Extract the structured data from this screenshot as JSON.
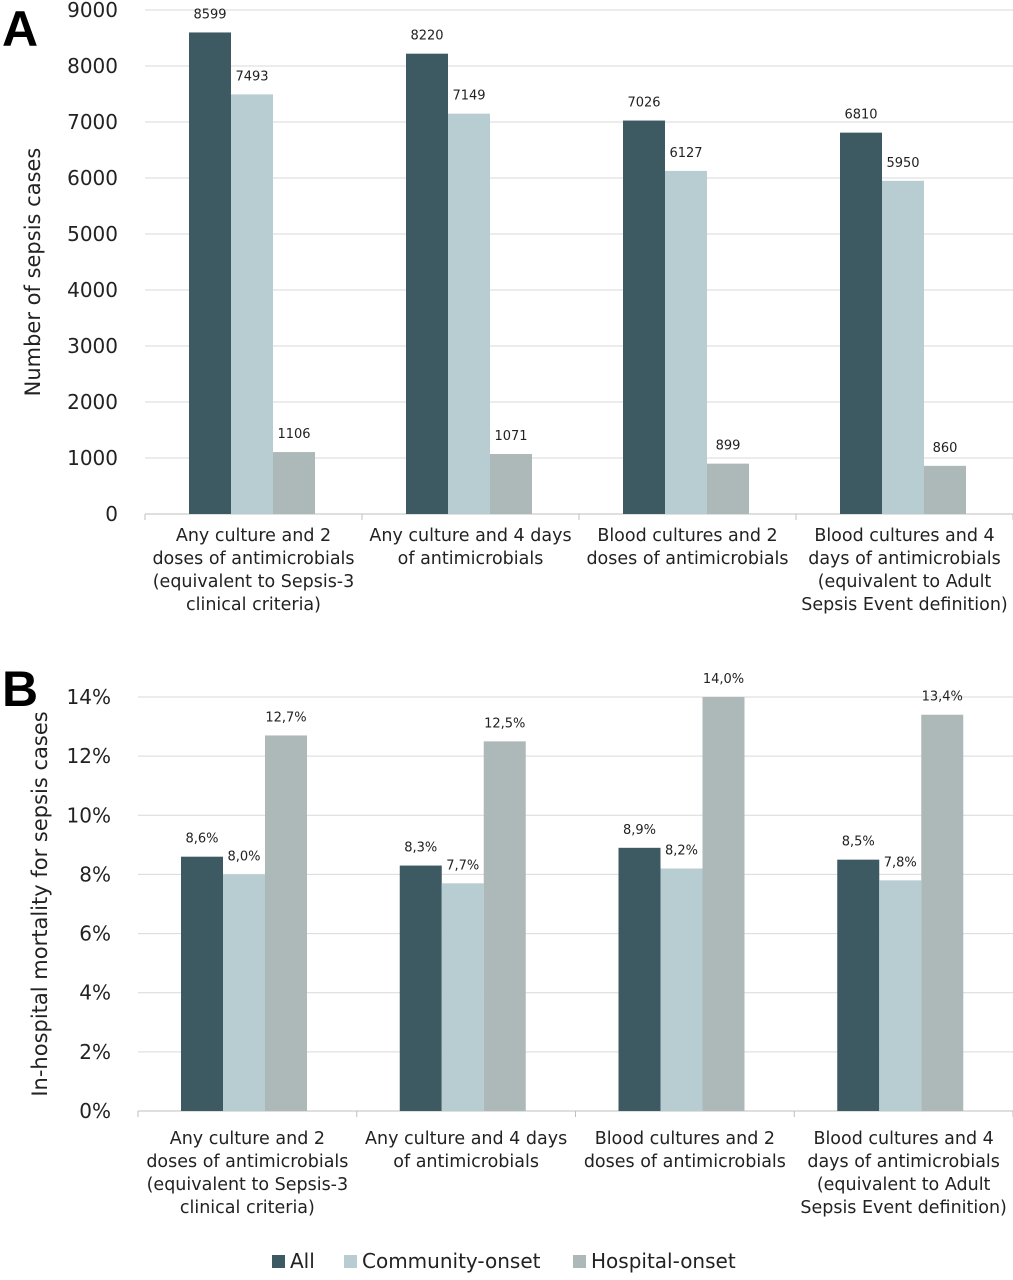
{
  "panels": [
    {
      "label": "A",
      "chart_data": {
        "type": "bar",
        "ylabel": "Number of sepsis cases",
        "ylim": [
          0,
          9000
        ],
        "yticks": [
          0,
          1000,
          2000,
          3000,
          4000,
          5000,
          6000,
          7000,
          8000,
          9000
        ],
        "ytick_labels": [
          "0",
          "1000",
          "2000",
          "3000",
          "4000",
          "5000",
          "6000",
          "7000",
          "8000",
          "9000"
        ],
        "categories": [
          [
            "Any culture and 2",
            "doses of antimicrobials",
            "(equivalent to Sepsis-3",
            "clinical criteria)"
          ],
          [
            "Any culture and 4 days",
            "of antimicrobials"
          ],
          [
            "Blood cultures and 2",
            "doses of antimicrobials"
          ],
          [
            "Blood cultures and 4",
            "days of antimicrobials",
            "(equivalent to Adult",
            "Sepsis Event definition)"
          ]
        ],
        "series": [
          {
            "name": "All",
            "values": [
              8599,
              8220,
              7026,
              6810
            ],
            "labels": [
              "8599",
              "8220",
              "7026",
              "6810"
            ]
          },
          {
            "name": "Community-onset",
            "values": [
              7493,
              7149,
              6127,
              5950
            ],
            "labels": [
              "7493",
              "7149",
              "6127",
              "5950"
            ]
          },
          {
            "name": "Hospital-onset",
            "values": [
              1106,
              1071,
              899,
              860
            ],
            "labels": [
              "1106",
              "1071",
              "899",
              "860"
            ]
          }
        ],
        "grid": true
      }
    },
    {
      "label": "B",
      "chart_data": {
        "type": "bar",
        "ylabel": "In-hospital mortality for sepsis cases",
        "ylim": [
          0,
          14
        ],
        "yticks": [
          0,
          2,
          4,
          6,
          8,
          10,
          12,
          14
        ],
        "ytick_labels": [
          "0%",
          "2%",
          "4%",
          "6%",
          "8%",
          "10%",
          "12%",
          "14%"
        ],
        "categories": [
          [
            "Any culture and 2",
            "doses of antimicrobials",
            "(equivalent to Sepsis-3",
            "clinical criteria)"
          ],
          [
            "Any culture and 4 days",
            "of antimicrobials"
          ],
          [
            "Blood cultures and 2",
            "doses of antimicrobials"
          ],
          [
            "Blood cultures and 4",
            "days of antimicrobials",
            "(equivalent to Adult",
            "Sepsis Event definition)"
          ]
        ],
        "series": [
          {
            "name": "All",
            "values": [
              8.6,
              8.3,
              8.9,
              8.5
            ],
            "labels": [
              "8,6%",
              "8,3%",
              "8,9%",
              "8,5%"
            ]
          },
          {
            "name": "Community-onset",
            "values": [
              8.0,
              7.7,
              8.2,
              7.8
            ],
            "labels": [
              "8,0%",
              "7,7%",
              "8,2%",
              "7,8%"
            ]
          },
          {
            "name": "Hospital-onset",
            "values": [
              12.7,
              12.5,
              14.0,
              13.4
            ],
            "labels": [
              "12,7%",
              "12,5%",
              "14,0%",
              "13,4%"
            ]
          }
        ],
        "grid": true
      }
    }
  ],
  "legend": {
    "placement": "bottom",
    "items": [
      "All",
      "Community-onset",
      "Hospital-onset"
    ]
  },
  "colors": {
    "All": "#3d5a63",
    "Community-onset": "#b7cdd2",
    "Hospital-onset": "#adb8b8"
  }
}
